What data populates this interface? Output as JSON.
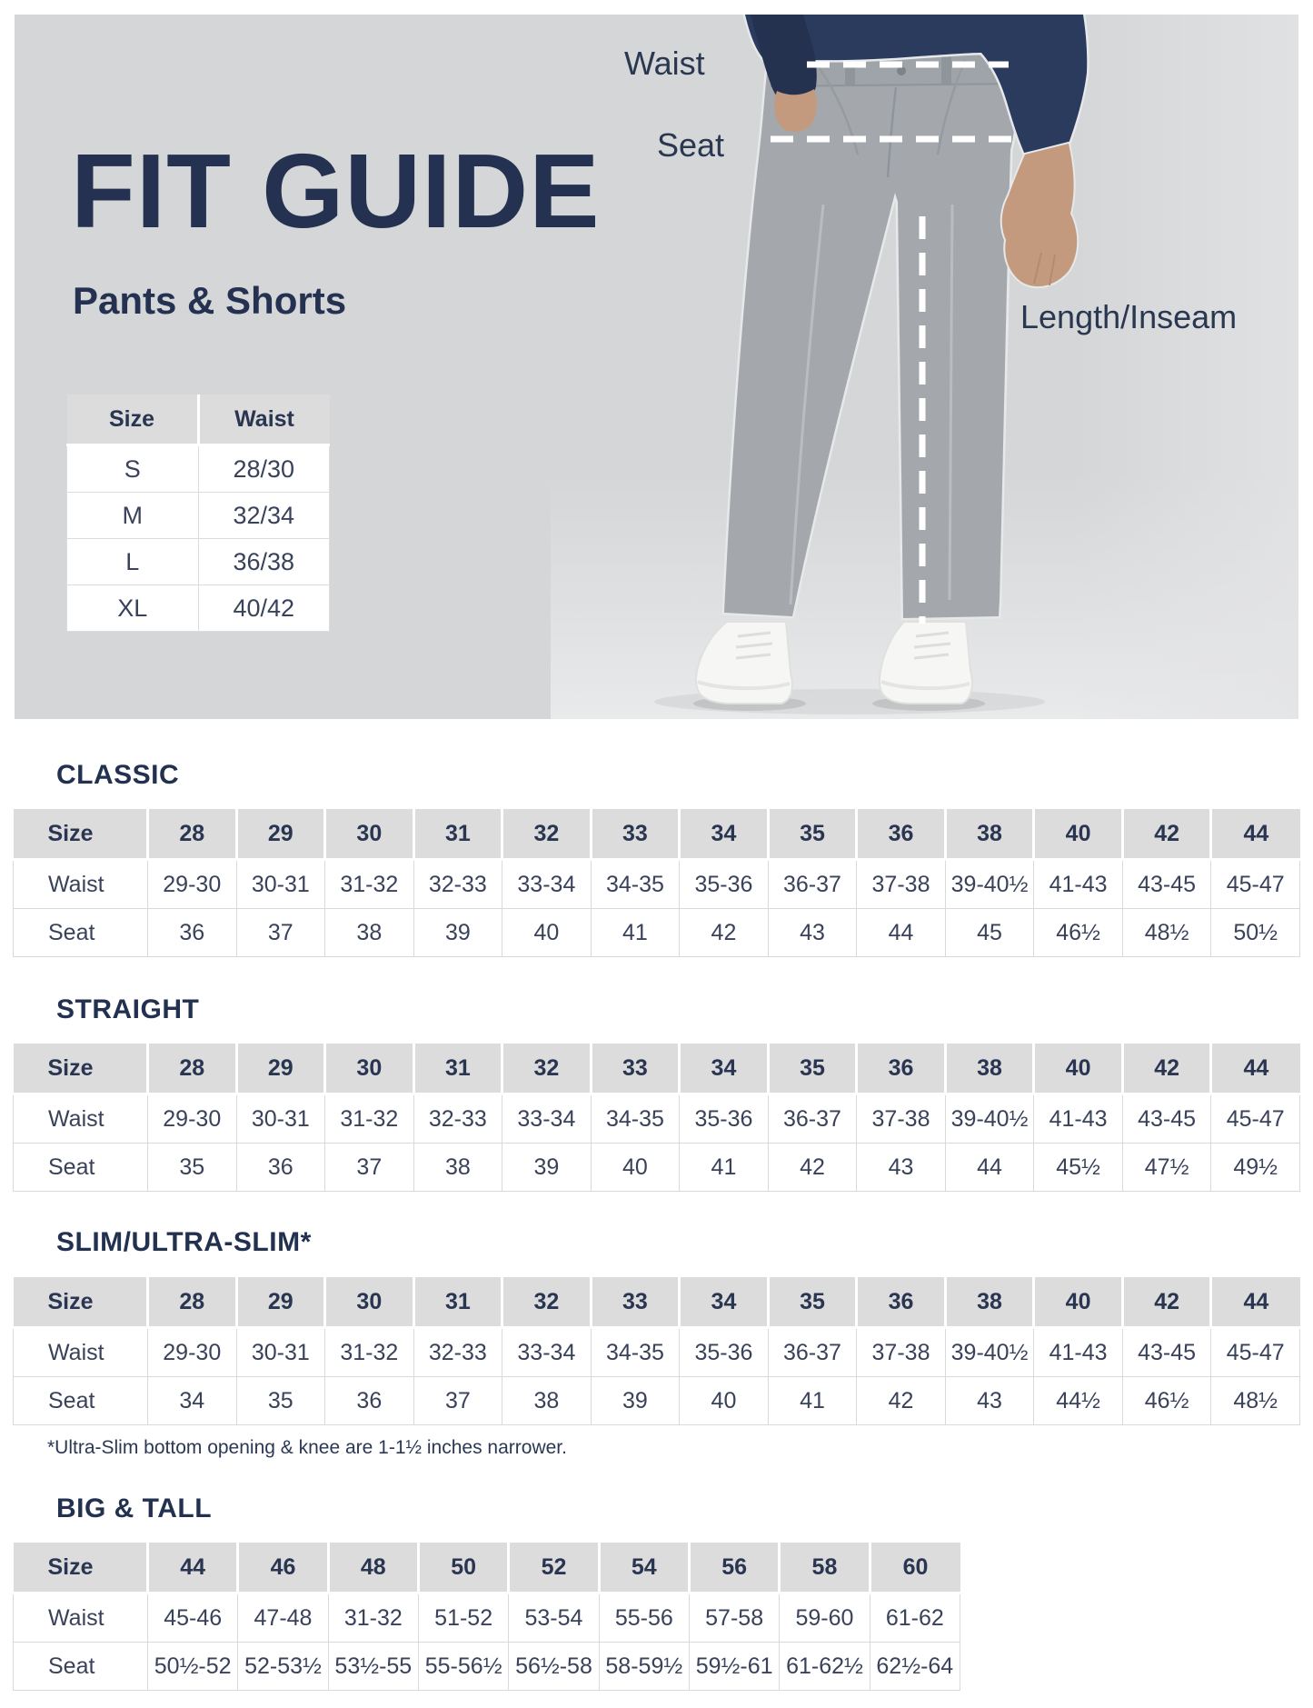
{
  "hero": {
    "title": "FIT GUIDE",
    "subtitle": "Pants & Shorts",
    "measure_labels": {
      "waist": "Waist",
      "seat": "Seat",
      "length": "Length/Inseam"
    },
    "size_table": {
      "headers": [
        "Size",
        "Waist"
      ],
      "rows": [
        [
          "S",
          "28/30"
        ],
        [
          "M",
          "32/34"
        ],
        [
          "L",
          "36/38"
        ],
        [
          "XL",
          "40/42"
        ]
      ]
    }
  },
  "sections": [
    {
      "title": "CLASSIC",
      "table": {
        "headers": [
          "Size",
          "28",
          "29",
          "30",
          "31",
          "32",
          "33",
          "34",
          "35",
          "36",
          "38",
          "40",
          "42",
          "44"
        ],
        "rows": [
          [
            "Waist",
            "29-30",
            "30-31",
            "31-32",
            "32-33",
            "33-34",
            "34-35",
            "35-36",
            "36-37",
            "37-38",
            "39-40½",
            "41-43",
            "43-45",
            "45-47"
          ],
          [
            "Seat",
            "36",
            "37",
            "38",
            "39",
            "40",
            "41",
            "42",
            "43",
            "44",
            "45",
            "46½",
            "48½",
            "50½"
          ]
        ]
      }
    },
    {
      "title": "STRAIGHT",
      "table": {
        "headers": [
          "Size",
          "28",
          "29",
          "30",
          "31",
          "32",
          "33",
          "34",
          "35",
          "36",
          "38",
          "40",
          "42",
          "44"
        ],
        "rows": [
          [
            "Waist",
            "29-30",
            "30-31",
            "31-32",
            "32-33",
            "33-34",
            "34-35",
            "35-36",
            "36-37",
            "37-38",
            "39-40½",
            "41-43",
            "43-45",
            "45-47"
          ],
          [
            "Seat",
            "35",
            "36",
            "37",
            "38",
            "39",
            "40",
            "41",
            "42",
            "43",
            "44",
            "45½",
            "47½",
            "49½"
          ]
        ]
      }
    },
    {
      "title": "SLIM/ULTRA-SLIM*",
      "table": {
        "headers": [
          "Size",
          "28",
          "29",
          "30",
          "31",
          "32",
          "33",
          "34",
          "35",
          "36",
          "38",
          "40",
          "42",
          "44"
        ],
        "rows": [
          [
            "Waist",
            "29-30",
            "30-31",
            "31-32",
            "32-33",
            "33-34",
            "34-35",
            "35-36",
            "36-37",
            "37-38",
            "39-40½",
            "41-43",
            "43-45",
            "45-47"
          ],
          [
            "Seat",
            "34",
            "35",
            "36",
            "37",
            "38",
            "39",
            "40",
            "41",
            "42",
            "43",
            "44½",
            "46½",
            "48½"
          ]
        ]
      }
    },
    {
      "title": "BIG & TALL",
      "table": {
        "headers": [
          "Size",
          "44",
          "46",
          "48",
          "50",
          "52",
          "54",
          "56",
          "58",
          "60"
        ],
        "rows": [
          [
            "Waist",
            "45-46",
            "47-48",
            "31-32",
            "51-52",
            "53-54",
            "55-56",
            "57-58",
            "59-60",
            "61-62"
          ],
          [
            "Seat",
            "50½-52",
            "52-53½",
            "53½-55",
            "55-56½",
            "56½-58",
            "58-59½",
            "59½-61",
            "61-62½",
            "62½-64"
          ]
        ]
      }
    }
  ],
  "slim_footnote": "*Ultra-Slim bottom opening & knee are 1-1½ inches narrower.",
  "colors": {
    "navy_text": "#243150",
    "hero_background": "#d5d6d8",
    "table_header_background": "#dcdcdd",
    "table_border": "#d9d9db",
    "pants_gray": "#a4a8ac",
    "sweater_navy": "#2b3b5e",
    "skin": "#c49a7f",
    "shoe_white": "#f6f6f4",
    "dash_line": "#ffffff"
  }
}
